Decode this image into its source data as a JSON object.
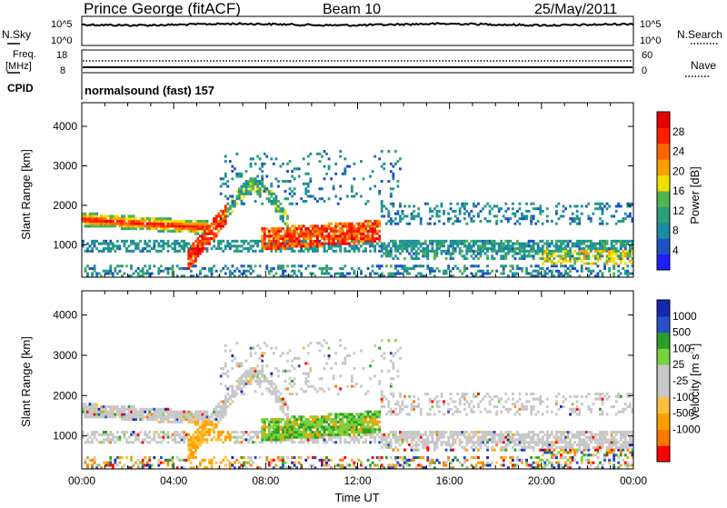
{
  "header": {
    "station": "Prince George (fitACF)",
    "beam": "Beam 10",
    "date": "25/May/2011"
  },
  "panels": {
    "sky": {
      "left_label": "N.Sky",
      "right_label": "N.Search",
      "left_ticks": [
        "10^5",
        "10^0"
      ],
      "right_ticks": [
        "10^5",
        "10^0"
      ]
    },
    "freq": {
      "left_label": "Freq.",
      "left_unit": "[MHz]",
      "right_label": "Nave",
      "left_ticks": [
        "18",
        "8"
      ],
      "right_ticks": [
        "60",
        "0"
      ]
    },
    "cpid": {
      "left_label": "CPID",
      "text": "normalsound (fast) 157"
    }
  },
  "colors": {
    "power": [
      "#1e1eff",
      "#1e50c8",
      "#1e8ca0",
      "#28a078",
      "#50b450",
      "#f0e000",
      "#ffa000",
      "#ff6400",
      "#ff1e00",
      "#e60000"
    ],
    "velocity": [
      "#ff0000",
      "#ff7800",
      "#ffa000",
      "#ffc040",
      "#c8c8c8",
      "#c8c8c8",
      "#78d23c",
      "#28a028",
      "#2850c8",
      "#1428b4"
    ]
  },
  "chart_data": [
    {
      "type": "heatmap",
      "title": "Power",
      "ylabel": "Slant Range [km]",
      "xlabel": "",
      "ylim": [
        180,
        4600
      ],
      "xlim": [
        0,
        24
      ],
      "y_ticks": [
        "1000",
        "2000",
        "3000",
        "4000"
      ],
      "colorbar_label": "Power [dB]",
      "colorbar_ticks": [
        "4",
        "8",
        "12",
        "16",
        "20",
        "24",
        "28"
      ],
      "colorbar_range": [
        0,
        32
      ]
    },
    {
      "type": "heatmap",
      "title": "Velocity",
      "ylabel": "Slant Range [km]",
      "xlabel": "Time UT",
      "ylim": [
        180,
        4600
      ],
      "xlim": [
        0,
        24
      ],
      "y_ticks": [
        "1000",
        "2000",
        "3000",
        "4000"
      ],
      "x_ticks": [
        "00:00",
        "04:00",
        "08:00",
        "12:00",
        "16:00",
        "20:00",
        "00:00"
      ],
      "colorbar_label": "Velocity [m s",
      "colorbar_label_sup": "-1",
      "colorbar_label_end": "]",
      "colorbar_ticks": [
        "1000",
        "500",
        "100",
        "25",
        "-25",
        "-100",
        "-500",
        "-1000"
      ]
    }
  ]
}
